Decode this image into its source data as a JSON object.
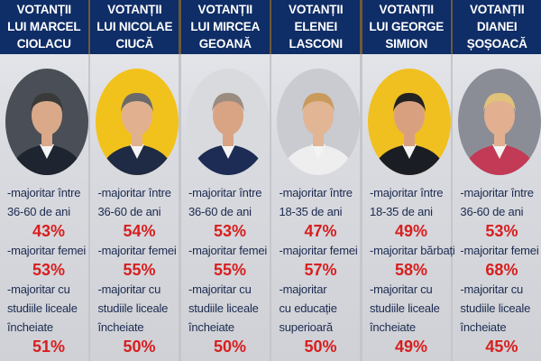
{
  "colors": {
    "header_bg": "#0f2d66",
    "label": "#1c2a4f",
    "percent": "#d81e1e"
  },
  "columns": [
    {
      "header": [
        "VOTANȚII",
        "LUI MARCEL",
        "CIOLACU"
      ],
      "photo": {
        "bg": "#4a4f57",
        "suit": "#1e2430",
        "skin": "#d9a98a",
        "hair": "#3a3a3a"
      },
      "items": [
        {
          "label": [
            "-majoritar între",
            "36-60 de ani"
          ],
          "value": "43%"
        },
        {
          "label": [
            "-majoritar femei"
          ],
          "value": "53%"
        },
        {
          "label": [
            "-majoritar cu",
            "studiile liceale",
            "încheiate"
          ],
          "value": "51%"
        }
      ]
    },
    {
      "header": [
        "VOTANȚII",
        "LUI NICOLAE",
        "CIUCĂ"
      ],
      "photo": {
        "bg": "#f2c21c",
        "suit": "#1f2a44",
        "skin": "#e0b08f",
        "hair": "#6a6a6a"
      },
      "items": [
        {
          "label": [
            "-majoritar între",
            "36-60 de ani"
          ],
          "value": "54%"
        },
        {
          "label": [
            "-majoritar femei"
          ],
          "value": "55%"
        },
        {
          "label": [
            "-majoritar cu",
            "studiile liceale",
            "încheiate"
          ],
          "value": "50%"
        }
      ]
    },
    {
      "header": [
        "VOTANȚII",
        "LUI MIRCEA",
        "GEOANĂ"
      ],
      "photo": {
        "bg": "#d9dadd",
        "suit": "#1c2c55",
        "skin": "#d9a484",
        "hair": "#9a8c80"
      },
      "items": [
        {
          "label": [
            "-majoritar între",
            "36-60 de ani"
          ],
          "value": "53%"
        },
        {
          "label": [
            "-majoritar femei"
          ],
          "value": "55%"
        },
        {
          "label": [
            "-majoritar cu",
            "studiile liceale",
            "încheiate"
          ],
          "value": "50%"
        }
      ]
    },
    {
      "header": [
        "VOTANȚII",
        "ELENEI",
        "LASCONI"
      ],
      "photo": {
        "bg": "#c9cbd0",
        "suit": "#eeeeee",
        "skin": "#e2b595",
        "hair": "#c99a5c"
      },
      "items": [
        {
          "label": [
            "-majoritar între",
            "18-35 de ani"
          ],
          "value": "47%"
        },
        {
          "label": [
            "-majoritar femei"
          ],
          "value": "57%"
        },
        {
          "label": [
            "-majoritar",
            "cu educație",
            "superioară"
          ],
          "value": "50%"
        }
      ]
    },
    {
      "header": [
        "VOTANȚII",
        "LUI GEORGE",
        "SIMION"
      ],
      "photo": {
        "bg": "#f0c020",
        "suit": "#1b1d24",
        "skin": "#d9a080",
        "hair": "#222222"
      },
      "items": [
        {
          "label": [
            "-majoritar între",
            "18-35 de ani"
          ],
          "value": "49%"
        },
        {
          "label": [
            "-majoritar bărbați"
          ],
          "value": "58%"
        },
        {
          "label": [
            "-majoritar cu",
            "studiile liceale",
            "încheiate"
          ],
          "value": "49%"
        }
      ]
    },
    {
      "header": [
        "VOTANȚII",
        "DIANEI",
        "ȘOȘOACĂ"
      ],
      "photo": {
        "bg": "#8a8d96",
        "suit": "#c23a55",
        "skin": "#e2b090",
        "hair": "#e0c27a"
      },
      "items": [
        {
          "label": [
            "-majoritar între",
            "36-60 de ani"
          ],
          "value": "53%"
        },
        {
          "label": [
            "-majoritar femei"
          ],
          "value": "68%"
        },
        {
          "label": [
            "-majoritar cu",
            "studiile liceale",
            "încheiate"
          ],
          "value": "45%"
        }
      ]
    }
  ]
}
